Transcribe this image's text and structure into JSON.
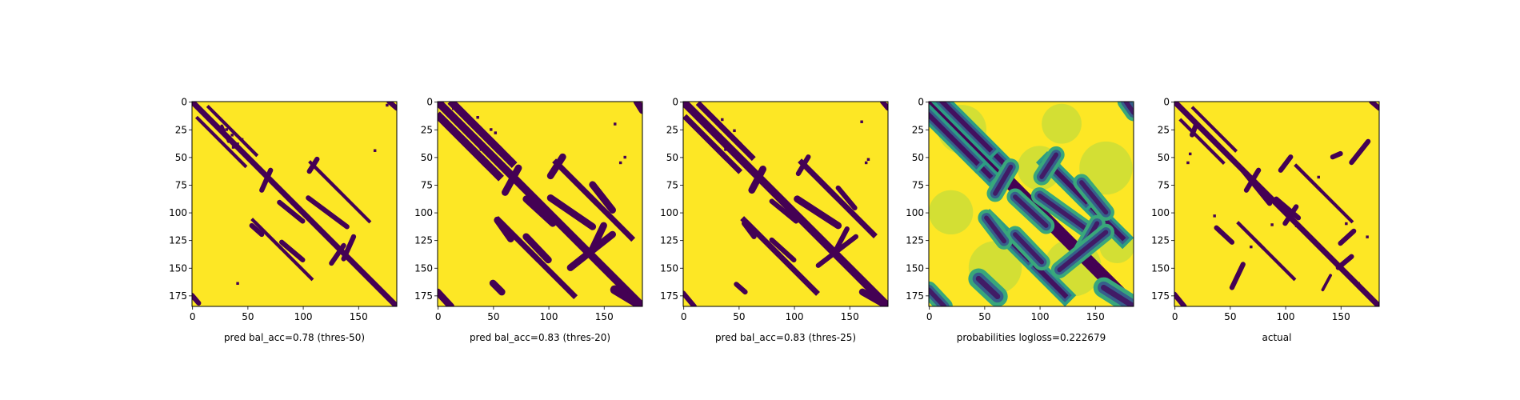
{
  "chart_data": [
    {
      "type": "heatmap",
      "variant": "binary",
      "caption": "pred bal_acc=0.78 (thres-50)",
      "matrix_size": 185,
      "xlim": [
        0,
        185
      ],
      "ylim": [
        185,
        0
      ],
      "xticks": [
        0,
        50,
        100,
        150
      ],
      "yticks": [
        0,
        25,
        50,
        75,
        100,
        125,
        150,
        175
      ],
      "colormap": "viridis",
      "contact_color": "#440154",
      "background_color": "#fde725",
      "contact_bands": [
        {
          "offset": 0,
          "from": 0,
          "to": 184,
          "half_width": 2
        },
        {
          "offset": 10,
          "from": 5,
          "to": 48,
          "half_width": 1
        },
        {
          "offset": -52,
          "from": 110,
          "to": 160,
          "half_width": 1
        },
        {
          "offset": 52,
          "from": 55,
          "to": 80,
          "half_width": 1
        }
      ],
      "contact_segments": [
        {
          "x0": 105,
          "y0": 87,
          "x1": 140,
          "y1": 113,
          "w": 2
        },
        {
          "x0": 113,
          "y0": 52,
          "x1": 106,
          "y1": 63,
          "w": 2
        },
        {
          "x0": 71,
          "y0": 62,
          "x1": 63,
          "y1": 80,
          "w": 2
        },
        {
          "x0": 79,
          "y0": 91,
          "x1": 100,
          "y1": 108,
          "w": 2
        },
        {
          "x0": 81,
          "y0": 127,
          "x1": 100,
          "y1": 143,
          "w": 2
        },
        {
          "x0": 54,
          "y0": 112,
          "x1": 63,
          "y1": 120,
          "w": 2
        },
        {
          "x0": 146,
          "y0": 122,
          "x1": 137,
          "y1": 142,
          "w": 2
        },
        {
          "x0": 137,
          "y0": 130,
          "x1": 126,
          "y1": 146,
          "w": 2
        },
        {
          "x0": 27,
          "y0": 22,
          "x1": 33,
          "y1": 36,
          "w": 1
        },
        {
          "x0": 0,
          "y0": 175,
          "x1": 6,
          "y1": 182,
          "w": 2
        },
        {
          "x0": 178,
          "y0": 0,
          "x1": 185,
          "y1": 6,
          "w": 2
        }
      ],
      "contact_dots": [
        [
          41,
          38
        ],
        [
          45,
          34
        ],
        [
          37,
          41
        ],
        [
          165,
          44
        ],
        [
          47,
          186
        ],
        [
          41,
          164
        ],
        [
          176,
          3
        ],
        [
          31,
          25
        ],
        [
          36,
          30
        ]
      ]
    },
    {
      "type": "heatmap",
      "variant": "binary",
      "caption": "pred bal_acc=0.83 (thres-20)",
      "matrix_size": 185,
      "xlim": [
        0,
        185
      ],
      "ylim": [
        185,
        0
      ],
      "xticks": [
        0,
        50,
        100,
        150
      ],
      "yticks": [
        0,
        25,
        50,
        75,
        100,
        125,
        150,
        175
      ],
      "colormap": "viridis",
      "contact_color": "#440154",
      "background_color": "#fde725",
      "contact_bands": [
        {
          "offset": 0,
          "from": 0,
          "to": 184,
          "half_width": 3
        },
        {
          "offset": 12,
          "from": 2,
          "to": 55,
          "half_width": 3
        },
        {
          "offset": -12,
          "from": 14,
          "to": 55,
          "half_width": 3
        },
        {
          "offset": -52,
          "from": 110,
          "to": 175,
          "half_width": 2
        },
        {
          "offset": 52,
          "from": 55,
          "to": 90,
          "half_width": 2
        }
      ],
      "contact_segments": [
        {
          "x0": 113,
          "y0": 50,
          "x1": 102,
          "y1": 67,
          "w": 3
        },
        {
          "x0": 73,
          "y0": 60,
          "x1": 61,
          "y1": 82,
          "w": 3
        },
        {
          "x0": 140,
          "y0": 75,
          "x1": 158,
          "y1": 98,
          "w": 3
        },
        {
          "x0": 102,
          "y0": 87,
          "x1": 140,
          "y1": 113,
          "w": 3
        },
        {
          "x0": 80,
          "y0": 88,
          "x1": 104,
          "y1": 110,
          "w": 3
        },
        {
          "x0": 80,
          "y0": 122,
          "x1": 100,
          "y1": 143,
          "w": 3
        },
        {
          "x0": 54,
          "y0": 107,
          "x1": 66,
          "y1": 124,
          "w": 3
        },
        {
          "x0": 150,
          "y0": 112,
          "x1": 140,
          "y1": 133,
          "w": 3
        },
        {
          "x0": 158,
          "y0": 120,
          "x1": 120,
          "y1": 150,
          "w": 3
        },
        {
          "x0": 160,
          "y0": 170,
          "x1": 185,
          "y1": 185,
          "w": 4
        },
        {
          "x0": 0,
          "y0": 172,
          "x1": 12,
          "y1": 185,
          "w": 3
        },
        {
          "x0": 180,
          "y0": 0,
          "x1": 185,
          "y1": 8,
          "w": 3
        },
        {
          "x0": 50,
          "y0": 164,
          "x1": 58,
          "y1": 172,
          "w": 3
        }
      ],
      "contact_dots": [
        [
          169,
          50
        ],
        [
          165,
          55
        ],
        [
          160,
          20
        ],
        [
          32,
          30
        ],
        [
          48,
          25
        ],
        [
          36,
          14
        ],
        [
          46,
          34
        ],
        [
          39,
          43
        ],
        [
          29,
          42
        ],
        [
          52,
          28
        ],
        [
          4,
          0
        ],
        [
          14,
          6
        ]
      ]
    },
    {
      "type": "heatmap",
      "variant": "binary",
      "caption": "pred bal_acc=0.83 (thres-25)",
      "matrix_size": 185,
      "xlim": [
        0,
        185
      ],
      "ylim": [
        185,
        0
      ],
      "xticks": [
        0,
        50,
        100,
        150
      ],
      "yticks": [
        0,
        25,
        50,
        75,
        100,
        125,
        150,
        175
      ],
      "colormap": "viridis",
      "contact_color": "#440154",
      "background_color": "#fde725",
      "contact_bands": [
        {
          "offset": 0,
          "from": 0,
          "to": 184,
          "half_width": 3
        },
        {
          "offset": 12,
          "from": 3,
          "to": 50,
          "half_width": 2
        },
        {
          "offset": -12,
          "from": 15,
          "to": 50,
          "half_width": 2
        },
        {
          "offset": -52,
          "from": 110,
          "to": 172,
          "half_width": 2
        },
        {
          "offset": 52,
          "from": 55,
          "to": 85,
          "half_width": 2
        }
      ],
      "contact_segments": [
        {
          "x0": 113,
          "y0": 50,
          "x1": 104,
          "y1": 65,
          "w": 2
        },
        {
          "x0": 72,
          "y0": 61,
          "x1": 62,
          "y1": 80,
          "w": 3
        },
        {
          "x0": 140,
          "y0": 78,
          "x1": 155,
          "y1": 96,
          "w": 2
        },
        {
          "x0": 103,
          "y0": 88,
          "x1": 140,
          "y1": 112,
          "w": 3
        },
        {
          "x0": 80,
          "y0": 90,
          "x1": 102,
          "y1": 108,
          "w": 2
        },
        {
          "x0": 80,
          "y0": 125,
          "x1": 100,
          "y1": 143,
          "w": 2
        },
        {
          "x0": 55,
          "y0": 110,
          "x1": 64,
          "y1": 122,
          "w": 2
        },
        {
          "x0": 148,
          "y0": 115,
          "x1": 138,
          "y1": 134,
          "w": 2
        },
        {
          "x0": 156,
          "y0": 122,
          "x1": 122,
          "y1": 148,
          "w": 2
        },
        {
          "x0": 162,
          "y0": 172,
          "x1": 185,
          "y1": 185,
          "w": 3
        },
        {
          "x0": 0,
          "y0": 173,
          "x1": 10,
          "y1": 185,
          "w": 2
        },
        {
          "x0": 180,
          "y0": 0,
          "x1": 185,
          "y1": 6,
          "w": 2
        },
        {
          "x0": 48,
          "y0": 165,
          "x1": 56,
          "y1": 172,
          "w": 2
        }
      ],
      "contact_dots": [
        [
          167,
          52
        ],
        [
          165,
          55
        ],
        [
          161,
          18
        ],
        [
          33,
          30
        ],
        [
          46,
          26
        ],
        [
          35,
          16
        ],
        [
          45,
          34
        ],
        [
          38,
          43
        ],
        [
          29,
          41
        ]
      ]
    },
    {
      "type": "heatmap",
      "variant": "probability",
      "caption": "probabilities logloss=0.222679",
      "matrix_size": 185,
      "xlim": [
        0,
        185
      ],
      "ylim": [
        185,
        0
      ],
      "xticks": [
        0,
        50,
        100,
        150
      ],
      "yticks": [
        0,
        25,
        50,
        75,
        100,
        125,
        150,
        175
      ],
      "colormap": "viridis",
      "contact_color": "#440154",
      "background_color": "#fde725",
      "prob_levels": {
        "diagonal": 0.0,
        "strong": 0.25,
        "medium": 0.5,
        "weak": 0.75,
        "background": 1.0
      },
      "contact_bands": [
        {
          "offset": 0,
          "from": 0,
          "to": 184,
          "half_width": 3
        },
        {
          "offset": 12,
          "from": 0,
          "to": 55,
          "half_width": 4
        },
        {
          "offset": -12,
          "from": 12,
          "to": 55,
          "half_width": 4
        },
        {
          "offset": -52,
          "from": 110,
          "to": 175,
          "half_width": 4
        },
        {
          "offset": 52,
          "from": 55,
          "to": 90,
          "half_width": 4
        }
      ],
      "contact_segments": [
        {
          "x0": 115,
          "y0": 48,
          "x1": 102,
          "y1": 68,
          "w": 4
        },
        {
          "x0": 74,
          "y0": 59,
          "x1": 60,
          "y1": 83,
          "w": 4
        },
        {
          "x0": 138,
          "y0": 73,
          "x1": 160,
          "y1": 100,
          "w": 4
        },
        {
          "x0": 100,
          "y0": 85,
          "x1": 142,
          "y1": 115,
          "w": 4
        },
        {
          "x0": 78,
          "y0": 86,
          "x1": 106,
          "y1": 112,
          "w": 4
        },
        {
          "x0": 78,
          "y0": 120,
          "x1": 102,
          "y1": 145,
          "w": 4
        },
        {
          "x0": 52,
          "y0": 105,
          "x1": 68,
          "y1": 126,
          "w": 4
        },
        {
          "x0": 152,
          "y0": 110,
          "x1": 138,
          "y1": 135,
          "w": 4
        },
        {
          "x0": 160,
          "y0": 118,
          "x1": 118,
          "y1": 152,
          "w": 4
        },
        {
          "x0": 158,
          "y0": 168,
          "x1": 185,
          "y1": 185,
          "w": 5
        },
        {
          "x0": 0,
          "y0": 170,
          "x1": 14,
          "y1": 185,
          "w": 4
        },
        {
          "x0": 178,
          "y0": 0,
          "x1": 185,
          "y1": 10,
          "w": 4
        },
        {
          "x0": 45,
          "y0": 160,
          "x1": 62,
          "y1": 176,
          "w": 5
        }
      ],
      "contact_dots": []
    },
    {
      "type": "heatmap",
      "variant": "binary",
      "caption": "actual",
      "matrix_size": 185,
      "xlim": [
        0,
        185
      ],
      "ylim": [
        185,
        0
      ],
      "xticks": [
        0,
        50,
        100,
        150
      ],
      "yticks": [
        0,
        25,
        50,
        75,
        100,
        125,
        150,
        175
      ],
      "colormap": "viridis",
      "contact_color": "#440154",
      "background_color": "#fde725",
      "contact_bands": [
        {
          "offset": 0,
          "from": 0,
          "to": 184,
          "half_width": 2
        },
        {
          "offset": 11,
          "from": 6,
          "to": 44,
          "half_width": 1
        },
        {
          "offset": -52,
          "from": 110,
          "to": 160,
          "half_width": 1
        },
        {
          "offset": 52,
          "from": 58,
          "to": 80,
          "half_width": 1
        }
      ],
      "contact_segments": [
        {
          "x0": 175,
          "y0": 36,
          "x1": 160,
          "y1": 55,
          "w": 2
        },
        {
          "x0": 150,
          "y0": 47,
          "x1": 143,
          "y1": 50,
          "w": 2
        },
        {
          "x0": 105,
          "y0": 50,
          "x1": 96,
          "y1": 62,
          "w": 2
        },
        {
          "x0": 76,
          "y0": 62,
          "x1": 65,
          "y1": 80,
          "w": 2
        },
        {
          "x0": 60,
          "y0": 60,
          "x1": 86,
          "y1": 92,
          "w": 2
        },
        {
          "x0": 92,
          "y0": 88,
          "x1": 112,
          "y1": 105,
          "w": 2
        },
        {
          "x0": 110,
          "y0": 95,
          "x1": 100,
          "y1": 110,
          "w": 2
        },
        {
          "x0": 38,
          "y0": 114,
          "x1": 52,
          "y1": 127,
          "w": 2
        },
        {
          "x0": 162,
          "y0": 117,
          "x1": 150,
          "y1": 128,
          "w": 2
        },
        {
          "x0": 160,
          "y0": 140,
          "x1": 148,
          "y1": 150,
          "w": 2
        },
        {
          "x0": 62,
          "y0": 147,
          "x1": 52,
          "y1": 168,
          "w": 2
        },
        {
          "x0": 141,
          "y0": 157,
          "x1": 134,
          "y1": 170,
          "w": 1
        },
        {
          "x0": 0,
          "y0": 174,
          "x1": 9,
          "y1": 185,
          "w": 2
        },
        {
          "x0": 178,
          "y0": 0,
          "x1": 185,
          "y1": 6,
          "w": 2
        },
        {
          "x0": 20,
          "y0": 20,
          "x1": 16,
          "y1": 30,
          "w": 2
        }
      ],
      "contact_dots": [
        [
          14,
          47
        ],
        [
          12,
          55
        ],
        [
          130,
          68
        ],
        [
          155,
          110
        ],
        [
          36,
          103
        ],
        [
          106,
          105
        ],
        [
          110,
          112
        ],
        [
          174,
          122
        ],
        [
          69,
          131
        ],
        [
          88,
          111
        ],
        [
          166,
          164
        ]
      ]
    }
  ]
}
